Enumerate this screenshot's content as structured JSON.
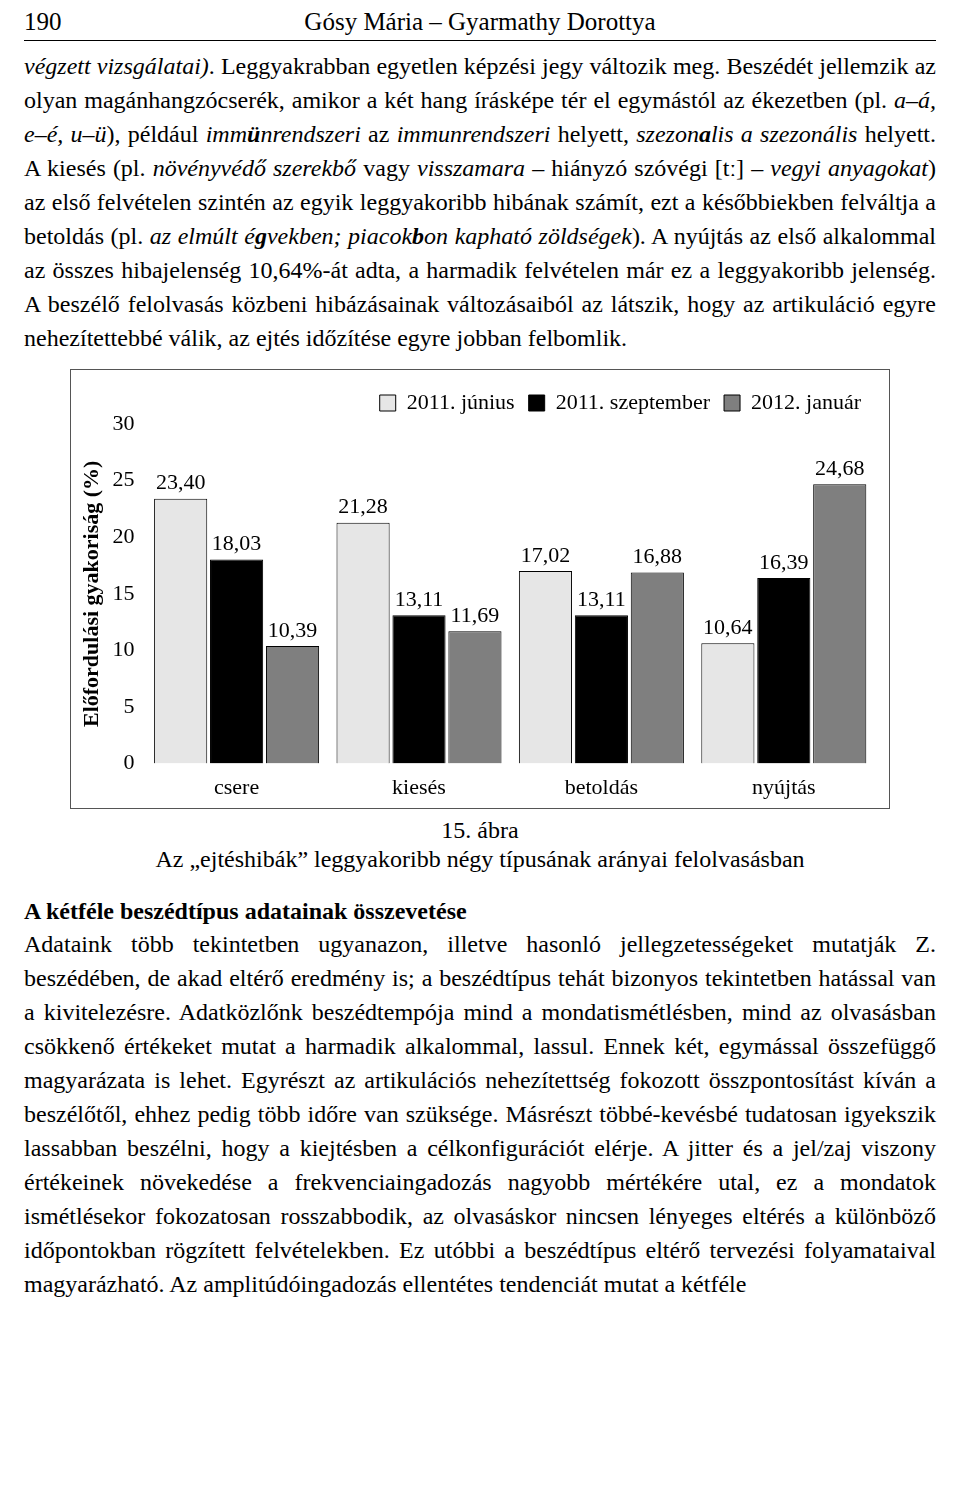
{
  "header": {
    "page_number": "190",
    "authors": "Gósy Mária – Gyarmathy Dorottya"
  },
  "paragraph_1": [
    [
      "végzett vizsgálatai)",
      "i"
    ],
    [
      ". Leggyakrabban egyetlen képzési jegy változik meg. Beszédét jellemzik az olyan magánhangzócserék, amikor a két hang írásképe tér el egymástól az ékezetben (pl. ",
      "n"
    ],
    [
      "a–á, e–é, u–ü",
      "i"
    ],
    [
      "), például ",
      "n"
    ],
    [
      "imm",
      "i"
    ],
    [
      "ü",
      "bi"
    ],
    [
      "nrendszeri",
      "i"
    ],
    [
      " az ",
      "n"
    ],
    [
      "immunrendszeri",
      "i"
    ],
    [
      " helyett, ",
      "n"
    ],
    [
      "szezon",
      "i"
    ],
    [
      "a",
      "bi"
    ],
    [
      "lis a szezonális",
      "i"
    ],
    [
      " helyett. A kiesés (pl. ",
      "n"
    ],
    [
      "növényvédő szerekbő",
      "i"
    ],
    [
      " vagy ",
      "n"
    ],
    [
      "visszamara",
      "i"
    ],
    [
      " – hiányzó szóvégi [tː] – ",
      "n"
    ],
    [
      "vegyi anyagokat",
      "i"
    ],
    [
      ") az első felvételen szintén az egyik leggyakoribb hibának számít, ezt a későbbiekben felváltja a betoldás (pl. ",
      "n"
    ],
    [
      "az elmúlt é",
      "i"
    ],
    [
      "g",
      "bi"
    ],
    [
      "vekben; piacok",
      "i"
    ],
    [
      "b",
      "bi"
    ],
    [
      "on kapható zöldségek",
      "i"
    ],
    [
      "). A nyújtás az első alkalommal az összes hibajelenség 10,64%-át adta, a harmadik felvételen már ez a leggyakoribb jelenség. A beszélő felolvasás közbeni hibázásainak változásaiból az látszik, hogy az artikuláció egyre nehezítettebbé válik, az ejtés időzítése egyre jobban felbomlik.",
      "n"
    ]
  ],
  "chart_data": {
    "type": "bar",
    "y_label": "Előfordulási gyakoriság (%)",
    "categories": [
      "csere",
      "kiesés",
      "betoldás",
      "nyújtás"
    ],
    "series": [
      {
        "name": "2011. június",
        "color": "#e6e6e6",
        "values": [
          23.4,
          21.28,
          17.02,
          10.64
        ],
        "value_labels": [
          "23,40",
          "21,28",
          "17,02",
          "10,64"
        ]
      },
      {
        "name": "2011. szeptember",
        "color": "#000000",
        "values": [
          18.03,
          13.11,
          13.11,
          16.39
        ],
        "value_labels": [
          "18,03",
          "13,11",
          "13,11",
          "16,39"
        ]
      },
      {
        "name": "2012. január",
        "color": "#7f7f7f",
        "values": [
          10.39,
          11.69,
          16.88,
          24.68
        ],
        "value_labels": [
          "10,39",
          "11,69",
          "16,88",
          "24,68"
        ]
      }
    ],
    "ylim": [
      0,
      30
    ],
    "yticks": [
      0,
      5,
      10,
      15,
      20,
      25,
      30
    ],
    "grid": false,
    "legend": "top",
    "data_labels": true
  },
  "figure_number": "15. ábra",
  "figure_caption": "Az „ejtéshibák” leggyakoribb négy típusának arányai felolvasásban",
  "section_heading": "A kétféle beszédtípus adatainak összevetése",
  "paragraph_2": [
    [
      "Adataink több tekintetben ugyanazon, illetve hasonló jellegzetességeket mutatják Z. beszédében, de akad eltérő eredmény is; a beszédtípus tehát bizonyos tekintetben hatással van a kivitelezésre. Adatközlőnk beszédtempója mind a mondatismétlésben, mind az olvasásban csökkenő értékeket mutat a harmadik alkalommal, lassul. Ennek két, egymással összefüggő magyarázata is lehet. Egyrészt az artikulációs nehezítettség fokozott összpontosítást kíván a beszélőtől, ehhez pedig több időre van szüksége. Másrészt többé-kevésbé tudatosan igyekszik lassabban beszélni, hogy a kiejtésben a célkonfigurációt elérje. A jitter és a jel/zaj viszony értékeinek növekedése a frekvenciaingadozás nagyobb mértékére utal, ez a mondatok ismétlésekor fokozatosan rosszabbodik, az olvasáskor nincsen lényeges eltérés a különböző időpontokban rögzített felvételekben. Ez utóbbi a beszédtípus eltérő tervezési folyamataival magyarázható. Az amplitúdóingadozás ellentétes tendenciát mutat a kétféle",
      "n"
    ]
  ]
}
